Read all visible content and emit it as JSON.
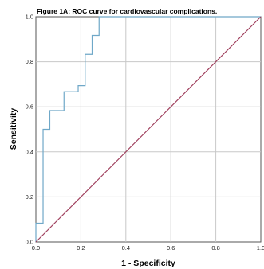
{
  "chart_data": {
    "type": "line",
    "title": "Figure 1A: ROC curve for cardiovascular complications.",
    "xlabel": "1 - Specificity",
    "ylabel": "Sensitivity",
    "xlim": [
      0,
      1
    ],
    "ylim": [
      0,
      1
    ],
    "x_ticks": [
      "0.0",
      "0.2",
      "0.4",
      "0.6",
      "0.8",
      "1.0"
    ],
    "y_ticks": [
      "0.0",
      "0.2",
      "0.4",
      "0.6",
      "0.8",
      "1.0"
    ],
    "grid": true,
    "legend": "none",
    "series": [
      {
        "color": "#6fa8c8",
        "x": [
          0,
          0,
          0.032,
          0.032,
          0.062,
          0.062,
          0.125,
          0.125,
          0.188,
          0.188,
          0.219,
          0.219,
          0.25,
          0.25,
          0.281,
          0.281,
          1.0
        ],
        "y": [
          0,
          0.083,
          0.083,
          0.5,
          0.5,
          0.583,
          0.583,
          0.667,
          0.667,
          0.694,
          0.694,
          0.833,
          0.833,
          0.917,
          0.917,
          1.0,
          1.0
        ]
      },
      {
        "color": "#a0405e",
        "x": [
          0,
          1
        ],
        "y": [
          0,
          1
        ]
      }
    ]
  }
}
